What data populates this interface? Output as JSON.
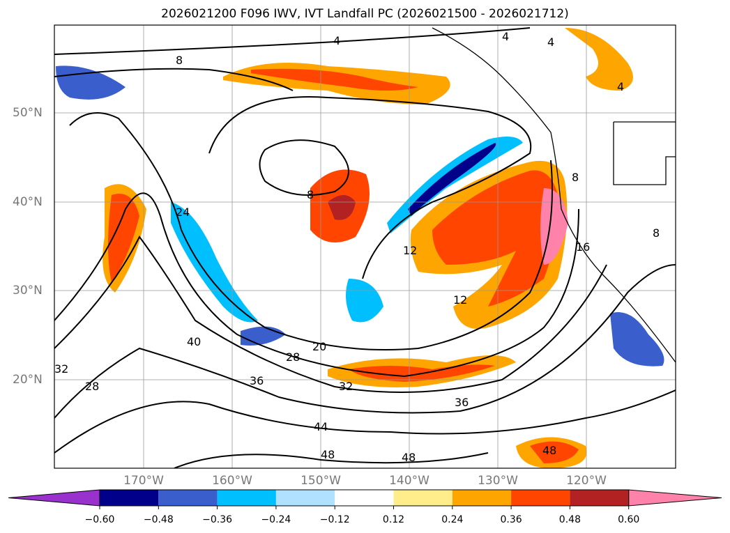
{
  "title": "2026021200 F096 IWV, IVT Landfall PC (2026021500 - 2026021712)",
  "lat_labels": [
    "50°N",
    "40°N",
    "30°N",
    "20°N"
  ],
  "lon_labels": [
    "170°W",
    "160°W",
    "150°W",
    "140°W",
    "130°W",
    "120°W"
  ],
  "contour_labels": [
    "4",
    "4",
    "4",
    "4",
    "8",
    "8",
    "8",
    "8",
    "12",
    "12",
    "16",
    "20",
    "24",
    "28",
    "28",
    "32",
    "32",
    "36",
    "36",
    "40",
    "44",
    "48",
    "48",
    "48"
  ],
  "colorbar": {
    "ticks": [
      "−0.60",
      "−0.48",
      "−0.36",
      "−0.24",
      "−0.12",
      "0.12",
      "0.24",
      "0.36",
      "0.48",
      "0.60"
    ],
    "colors": [
      "#9932cc",
      "#00008b",
      "#3a5fcd",
      "#00bfff",
      "#b0e2ff",
      "#ffffff",
      "#ffec8b",
      "#ffa500",
      "#ff4500",
      "#b22222",
      "#ff82ab"
    ]
  }
}
